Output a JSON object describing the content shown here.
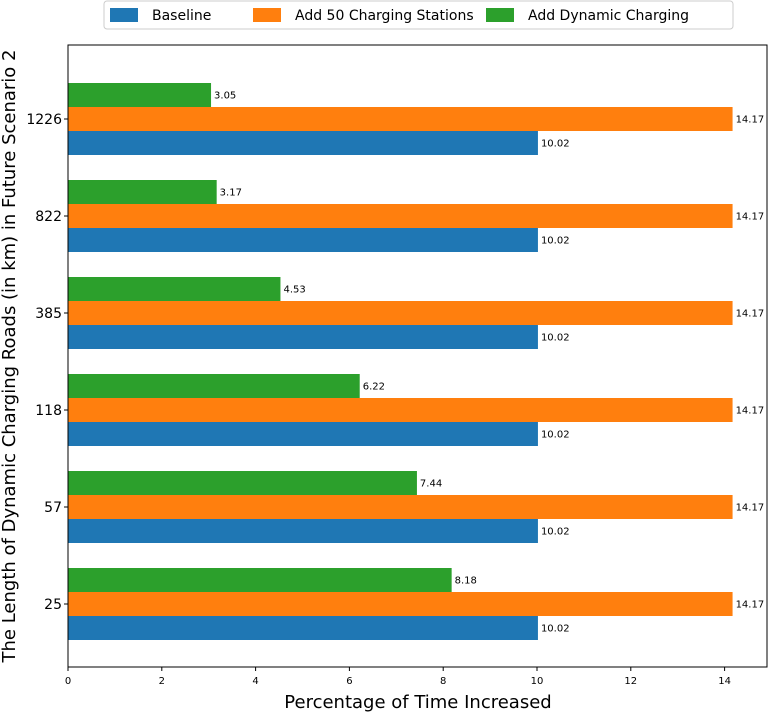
{
  "chart_data": {
    "type": "bar",
    "orientation": "horizontal",
    "xlabel": "Percentage of Time Increased",
    "ylabel": "The Length of Dynamic Charging Roads (in km) in Future Scenario 2",
    "categories": [
      "25",
      "57",
      "118",
      "385",
      "822",
      "1226"
    ],
    "xlim": [
      0,
      15.5
    ],
    "xticks": [
      "0",
      "2",
      "4",
      "6",
      "8",
      "10",
      "12",
      "14"
    ],
    "legend_position": "top",
    "grid": false,
    "series": [
      {
        "name": "Baseline",
        "color": "#1f77b4",
        "values": [
          10.02,
          10.02,
          10.02,
          10.02,
          10.02,
          10.02
        ],
        "labels": [
          "10.02",
          "10.02",
          "10.02",
          "10.02",
          "10.02",
          "10.02"
        ]
      },
      {
        "name": "Add 50 Charging Stations",
        "color": "#ff7f0e",
        "values": [
          14.17,
          14.17,
          14.17,
          14.17,
          14.17,
          14.17
        ],
        "labels": [
          "14.17",
          "14.17",
          "14.17",
          "14.17",
          "14.17",
          "14.17"
        ]
      },
      {
        "name": "Add Dynamic Charging",
        "color": "#2ca02c",
        "values": [
          8.18,
          7.44,
          6.22,
          4.53,
          3.17,
          3.05
        ],
        "labels": [
          "8.18",
          "7.44",
          "6.22",
          "4.53",
          "3.17",
          "3.05"
        ]
      }
    ]
  }
}
